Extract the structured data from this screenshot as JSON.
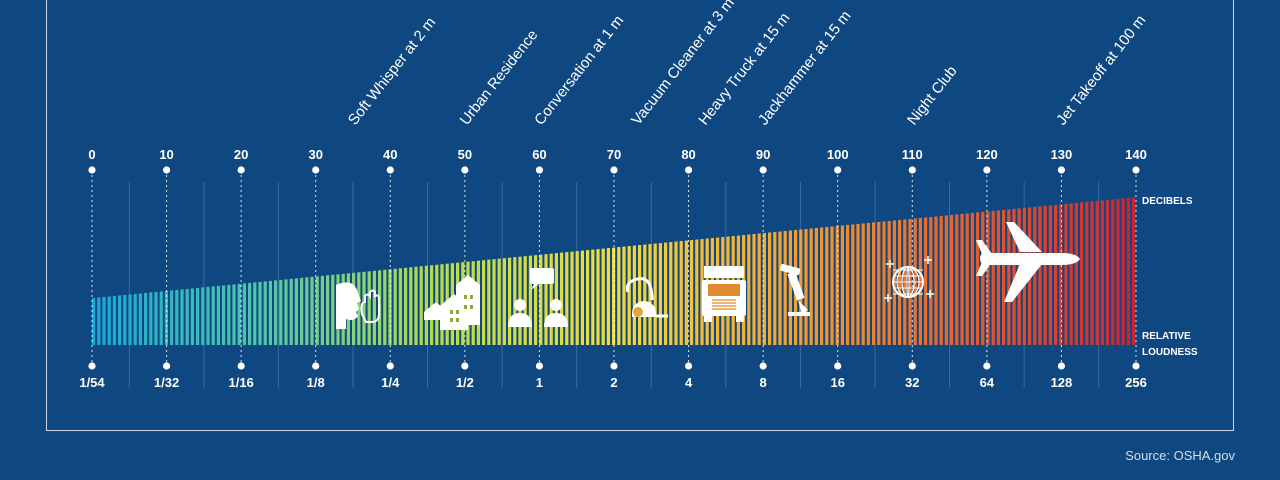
{
  "chart_data": {
    "type": "bar",
    "x_axis_top": {
      "label": "DECIBELS",
      "ticks": [
        "0",
        "10",
        "20",
        "30",
        "40",
        "50",
        "60",
        "70",
        "80",
        "90",
        "100",
        "110",
        "120",
        "130",
        "140"
      ],
      "range": [
        0,
        140
      ]
    },
    "x_axis_bottom": {
      "label": "RELATIVE LOUDNESS",
      "ticks": [
        "1/54",
        "1/32",
        "1/16",
        "1/8",
        "1/4",
        "1/2",
        "1",
        "2",
        "4",
        "8",
        "16",
        "32",
        "64",
        "128",
        "256"
      ]
    },
    "categories": [
      {
        "label": "Soft Whisper at 2 m",
        "db": 35,
        "icon": "whisper-icon"
      },
      {
        "label": "Urban Residence",
        "db": 50,
        "icon": "houses-icon"
      },
      {
        "label": "Conversation at 1 m",
        "db": 60,
        "icon": "conversation-icon"
      },
      {
        "label": "Vacuum Cleaner at 3 m",
        "db": 73,
        "icon": "vacuum-icon"
      },
      {
        "label": "Heavy Truck at 15 m",
        "db": 82,
        "icon": "truck-icon"
      },
      {
        "label": "Jackhammer at 15 m",
        "db": 90,
        "icon": "jackhammer-icon"
      },
      {
        "label": "Night Club",
        "db": 110,
        "icon": "disco-ball-icon"
      },
      {
        "label": "Jet Takeoff at 100 m",
        "db": 130,
        "icon": "airplane-icon"
      }
    ],
    "gradient_colors": [
      "#19a7d6",
      "#53c7a8",
      "#b8dc4a",
      "#f2dc3c",
      "#f2a232",
      "#e8602c",
      "#cc2233"
    ],
    "grid": true
  },
  "source": "Source: OSHA.gov",
  "colors": {
    "background": "#0f4780",
    "bars": "rainbow gradient"
  }
}
